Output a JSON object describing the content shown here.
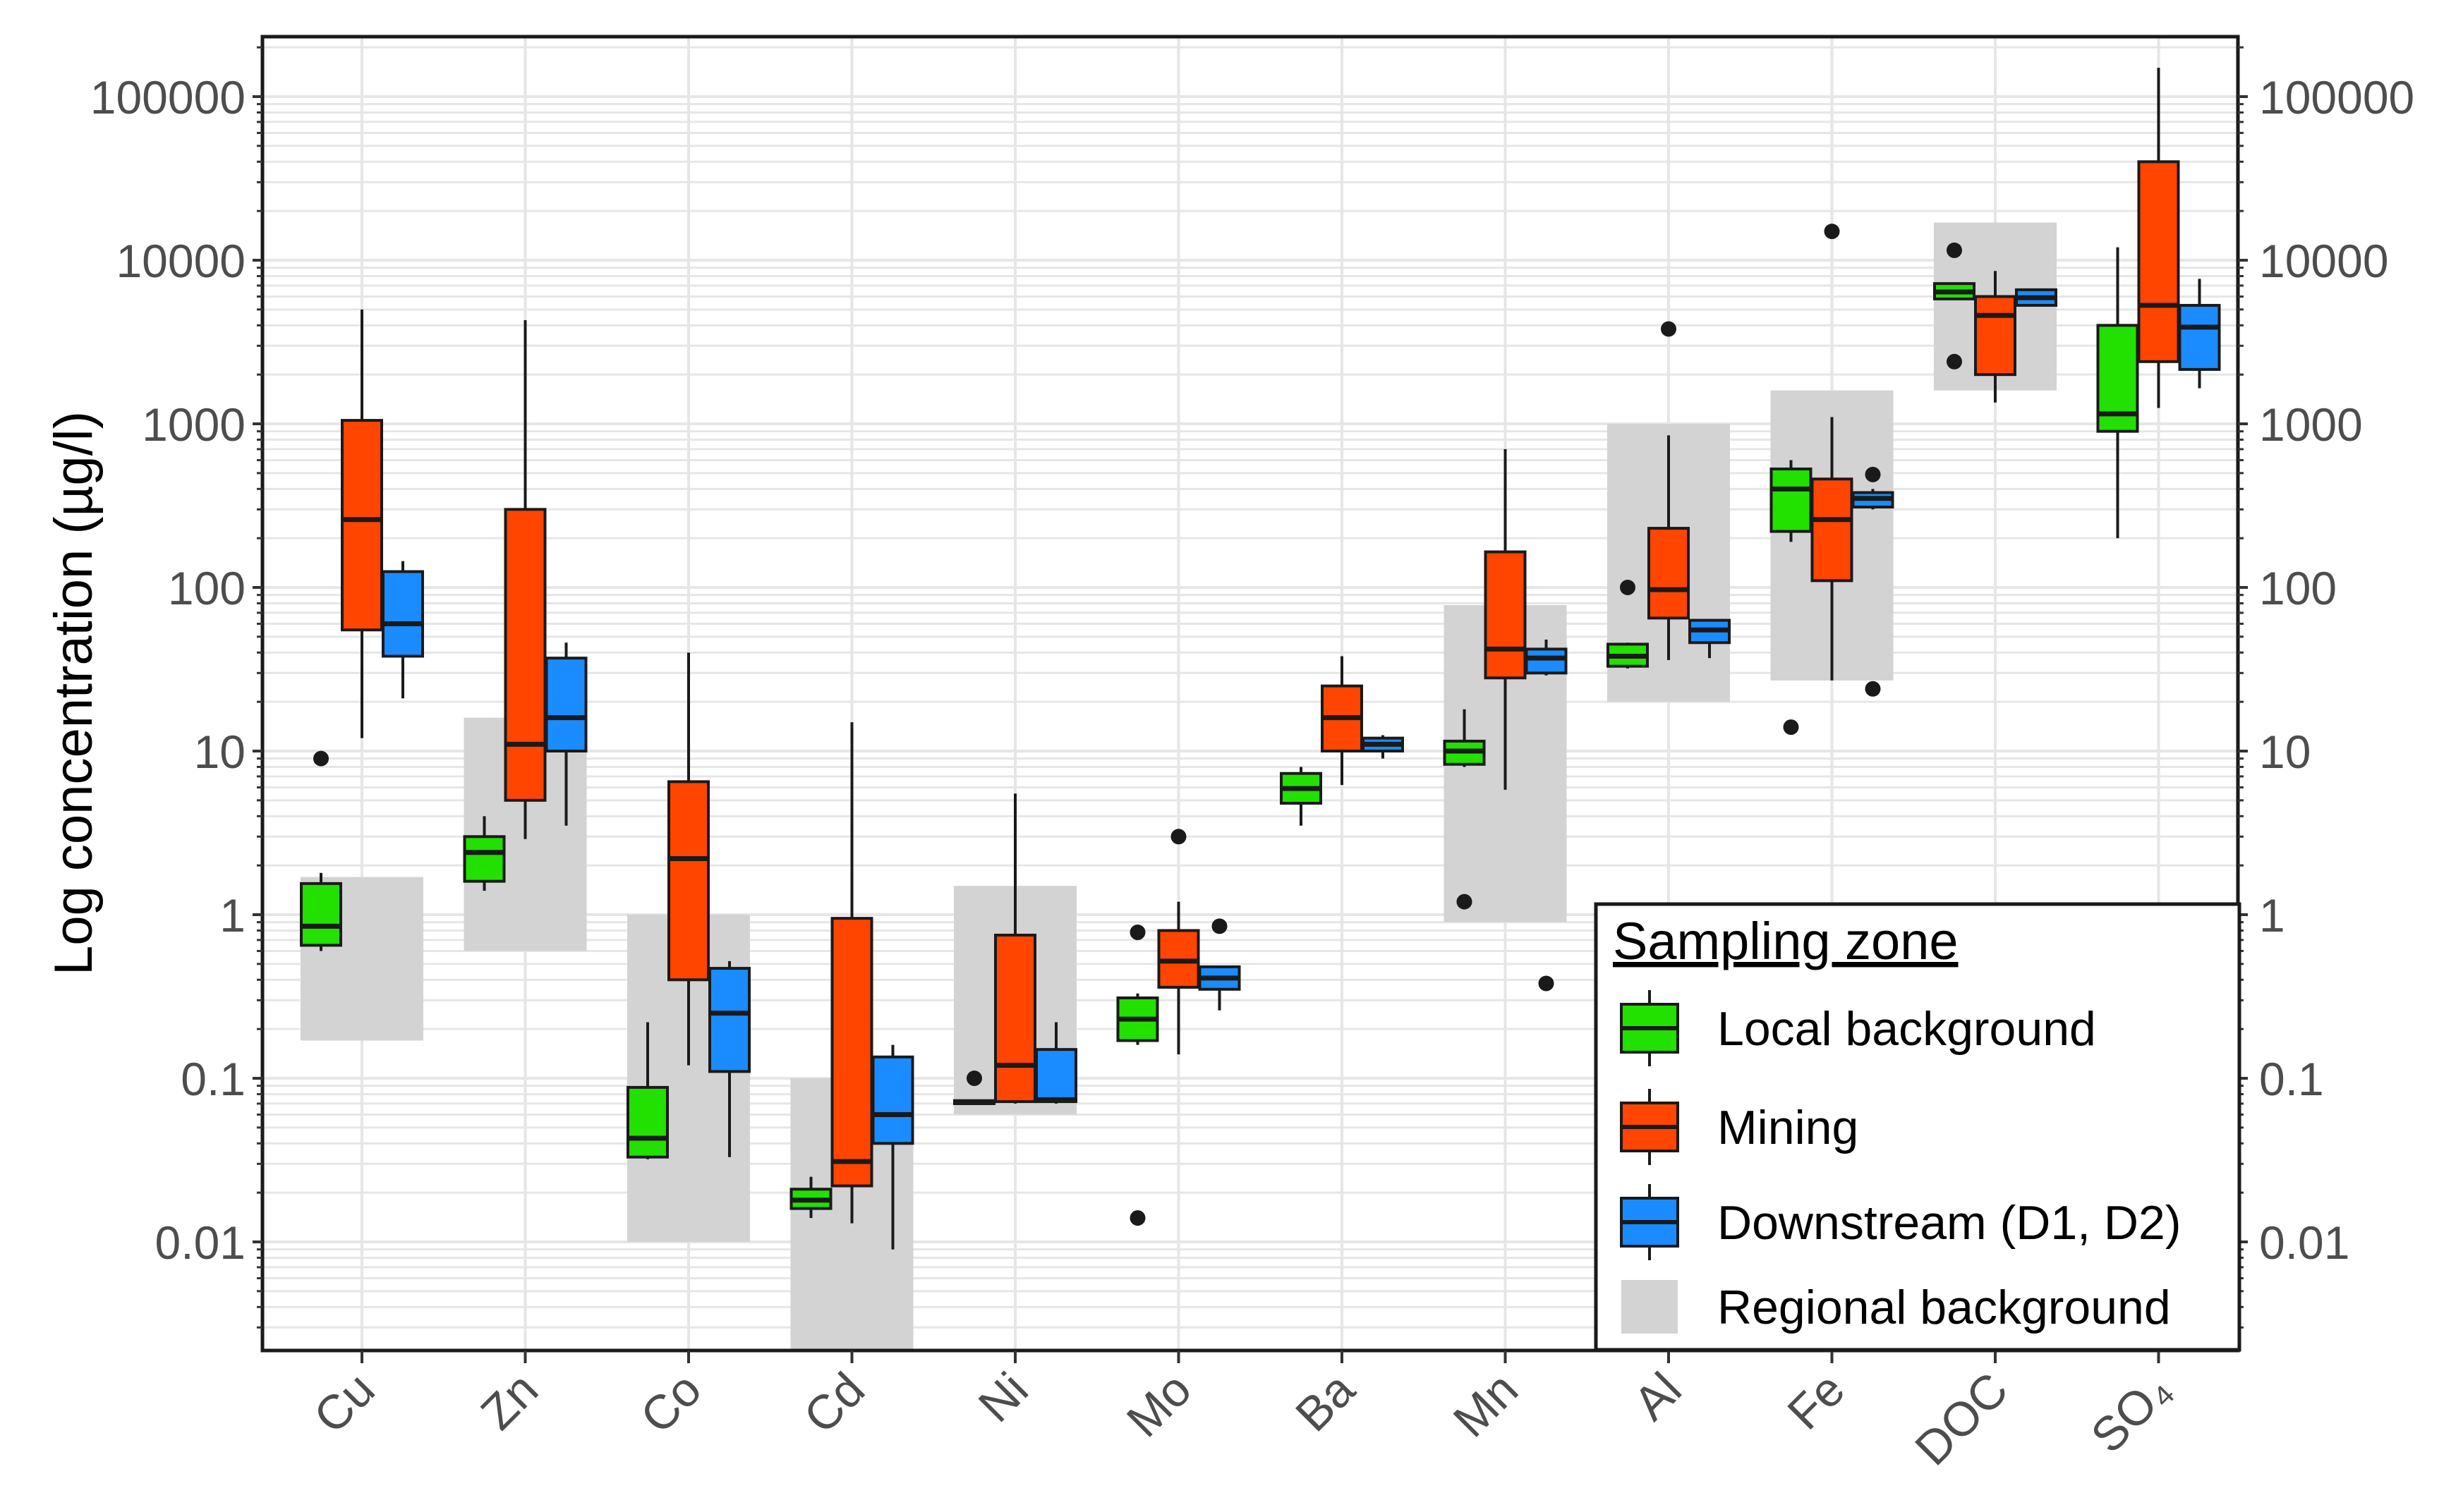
{
  "chart_data": {
    "type": "boxplot",
    "title": "",
    "xlabel": "",
    "ylabel": "Log concentration (µg/l)",
    "yscale": "log10",
    "ylim": [
      0.002,
      200000
    ],
    "y_ticks": [
      0.01,
      0.1,
      1,
      10,
      100,
      1000,
      10000,
      100000
    ],
    "y_tick_labels": [
      "0.01",
      "0.1",
      "1",
      "10",
      "100",
      "1000",
      "10000",
      "100000"
    ],
    "categories": [
      "Cu",
      "Zn",
      "Co",
      "Cd",
      "Ni",
      "Mo",
      "Ba",
      "Mn",
      "Al",
      "Fe",
      "DOC",
      "SO4"
    ],
    "category_labels": [
      "Cu",
      "Zn",
      "Co",
      "Cd",
      "Ni",
      "Mo",
      "Ba",
      "Mn",
      "Al",
      "Fe",
      "DOC",
      "SO₄"
    ],
    "colors": {
      "local": "#22e000",
      "mining": "#ff4500",
      "downstream": "#1a8cff",
      "regional": "#d3d3d3",
      "frame": "#1a1a1a",
      "grid": "#e6e6e6"
    },
    "legend": {
      "title": "Sampling zone",
      "position": "bottom-right",
      "entries": [
        {
          "key": "local",
          "label": "Local background"
        },
        {
          "key": "mining",
          "label": "Mining"
        },
        {
          "key": "downstream",
          "label": "Downstream (D1, D2)"
        },
        {
          "key": "regional",
          "label": "Regional background"
        }
      ]
    },
    "regional_background": [
      {
        "category": "Cu",
        "low": 0.17,
        "high": 1.7
      },
      {
        "category": "Zn",
        "low": 0.6,
        "high": 16
      },
      {
        "category": "Co",
        "low": 0.01,
        "high": 1.0
      },
      {
        "category": "Cd",
        "low": 0.002,
        "high": 0.1
      },
      {
        "category": "Ni",
        "low": 0.06,
        "high": 1.5
      },
      {
        "category": "Mn",
        "low": 0.9,
        "high": 78
      },
      {
        "category": "Al",
        "low": 20,
        "high": 1000
      },
      {
        "category": "Fe",
        "low": 27,
        "high": 1600
      },
      {
        "category": "DOC",
        "low": 1600,
        "high": 17000
      }
    ],
    "series": [
      {
        "key": "local",
        "name": "Local background",
        "boxes": [
          {
            "category": "Cu",
            "whisker_low": 0.6,
            "q1": 0.65,
            "median": 0.85,
            "q3": 1.55,
            "whisker_high": 1.8,
            "outliers": [
              9
            ]
          },
          {
            "category": "Zn",
            "whisker_low": 1.4,
            "q1": 1.6,
            "median": 2.4,
            "q3": 3.0,
            "whisker_high": 4.0,
            "outliers": []
          },
          {
            "category": "Co",
            "whisker_low": 0.032,
            "q1": 0.033,
            "median": 0.043,
            "q3": 0.088,
            "whisker_high": 0.22,
            "outliers": []
          },
          {
            "category": "Cd",
            "whisker_low": 0.014,
            "q1": 0.016,
            "median": 0.018,
            "q3": 0.021,
            "whisker_high": 0.025,
            "outliers": []
          },
          {
            "category": "Ni",
            "whisker_low": 0.07,
            "q1": 0.07,
            "median": 0.071,
            "q3": 0.073,
            "whisker_high": 0.073,
            "outliers": [
              0.1
            ]
          },
          {
            "category": "Mo",
            "whisker_low": 0.16,
            "q1": 0.17,
            "median": 0.23,
            "q3": 0.31,
            "whisker_high": 0.33,
            "outliers": [
              0.78,
              0.014
            ]
          },
          {
            "category": "Ba",
            "whisker_low": 3.5,
            "q1": 4.8,
            "median": 5.9,
            "q3": 7.3,
            "whisker_high": 8.0,
            "outliers": []
          },
          {
            "category": "Mn",
            "whisker_low": 8,
            "q1": 8.3,
            "median": 10,
            "q3": 11.5,
            "whisker_high": 18,
            "outliers": [
              1.2
            ]
          },
          {
            "category": "Al",
            "whisker_low": 32,
            "q1": 33,
            "median": 38,
            "q3": 45,
            "whisker_high": 46,
            "outliers": [
              100
            ]
          },
          {
            "category": "Fe",
            "whisker_low": 190,
            "q1": 220,
            "median": 400,
            "q3": 530,
            "whisker_high": 600,
            "outliers": [
              14
            ]
          },
          {
            "category": "DOC",
            "whisker_low": 5800,
            "q1": 5800,
            "median": 6400,
            "q3": 7200,
            "whisker_high": 7300,
            "outliers": [
              11500,
              2400
            ]
          },
          {
            "category": "SO4",
            "whisker_low": 200,
            "q1": 900,
            "median": 1150,
            "q3": 4000,
            "whisker_high": 12000,
            "outliers": []
          }
        ]
      },
      {
        "key": "mining",
        "name": "Mining",
        "boxes": [
          {
            "category": "Cu",
            "whisker_low": 12,
            "q1": 55,
            "median": 260,
            "q3": 1050,
            "whisker_high": 5000,
            "outliers": []
          },
          {
            "category": "Zn",
            "whisker_low": 2.9,
            "q1": 5,
            "median": 11,
            "q3": 300,
            "whisker_high": 4300,
            "outliers": []
          },
          {
            "category": "Co",
            "whisker_low": 0.12,
            "q1": 0.4,
            "median": 2.2,
            "q3": 6.5,
            "whisker_high": 40,
            "outliers": []
          },
          {
            "category": "Cd",
            "whisker_low": 0.013,
            "q1": 0.022,
            "median": 0.031,
            "q3": 0.95,
            "whisker_high": 15,
            "outliers": []
          },
          {
            "category": "Ni",
            "whisker_low": 0.07,
            "q1": 0.072,
            "median": 0.12,
            "q3": 0.75,
            "whisker_high": 5.5,
            "outliers": []
          },
          {
            "category": "Mo",
            "whisker_low": 0.14,
            "q1": 0.36,
            "median": 0.52,
            "q3": 0.8,
            "whisker_high": 1.2,
            "outliers": [
              3.0
            ]
          },
          {
            "category": "Ba",
            "whisker_low": 6.2,
            "q1": 10,
            "median": 16,
            "q3": 25,
            "whisker_high": 38,
            "outliers": []
          },
          {
            "category": "Mn",
            "whisker_low": 5.8,
            "q1": 28,
            "median": 42,
            "q3": 165,
            "whisker_high": 700,
            "outliers": []
          },
          {
            "category": "Al",
            "whisker_low": 36,
            "q1": 65,
            "median": 97,
            "q3": 230,
            "whisker_high": 850,
            "outliers": [
              3800
            ]
          },
          {
            "category": "Fe",
            "whisker_low": 27,
            "q1": 110,
            "median": 260,
            "q3": 460,
            "whisker_high": 1100,
            "outliers": [
              15000
            ]
          },
          {
            "category": "DOC",
            "whisker_low": 1350,
            "q1": 2000,
            "median": 4600,
            "q3": 6000,
            "whisker_high": 8600,
            "outliers": []
          },
          {
            "category": "SO4",
            "whisker_low": 1250,
            "q1": 2400,
            "median": 5300,
            "q3": 40000,
            "whisker_high": 150000,
            "outliers": []
          }
        ]
      },
      {
        "key": "downstream",
        "name": "Downstream (D1, D2)",
        "boxes": [
          {
            "category": "Cu",
            "whisker_low": 21,
            "q1": 38,
            "median": 60,
            "q3": 125,
            "whisker_high": 145,
            "outliers": []
          },
          {
            "category": "Zn",
            "whisker_low": 3.5,
            "q1": 10,
            "median": 16,
            "q3": 37,
            "whisker_high": 46,
            "outliers": []
          },
          {
            "category": "Co",
            "whisker_low": 0.033,
            "q1": 0.11,
            "median": 0.25,
            "q3": 0.47,
            "whisker_high": 0.52,
            "outliers": []
          },
          {
            "category": "Cd",
            "whisker_low": 0.009,
            "q1": 0.04,
            "median": 0.06,
            "q3": 0.135,
            "whisker_high": 0.16,
            "outliers": []
          },
          {
            "category": "Ni",
            "whisker_low": 0.07,
            "q1": 0.072,
            "median": 0.074,
            "q3": 0.15,
            "whisker_high": 0.22,
            "outliers": []
          },
          {
            "category": "Mo",
            "whisker_low": 0.26,
            "q1": 0.35,
            "median": 0.41,
            "q3": 0.48,
            "whisker_high": 0.48,
            "outliers": [
              0.85
            ]
          },
          {
            "category": "Ba",
            "whisker_low": 9,
            "q1": 10,
            "median": 11,
            "q3": 12,
            "whisker_high": 12.5,
            "outliers": []
          },
          {
            "category": "Mn",
            "whisker_low": 29,
            "q1": 30,
            "median": 37,
            "q3": 42,
            "whisker_high": 48,
            "outliers": [
              0.38
            ]
          },
          {
            "category": "Al",
            "whisker_low": 37,
            "q1": 46,
            "median": 55,
            "q3": 63,
            "whisker_high": 64,
            "outliers": []
          },
          {
            "category": "Fe",
            "whisker_low": 300,
            "q1": 310,
            "median": 350,
            "q3": 380,
            "whisker_high": 400,
            "outliers": [
              490,
              24
            ]
          },
          {
            "category": "DOC",
            "whisker_low": 5300,
            "q1": 5300,
            "median": 5900,
            "q3": 6600,
            "whisker_high": 6700,
            "outliers": []
          },
          {
            "category": "SO4",
            "whisker_low": 1650,
            "q1": 2150,
            "median": 3900,
            "q3": 5300,
            "whisker_high": 7700,
            "outliers": []
          }
        ]
      }
    ]
  }
}
